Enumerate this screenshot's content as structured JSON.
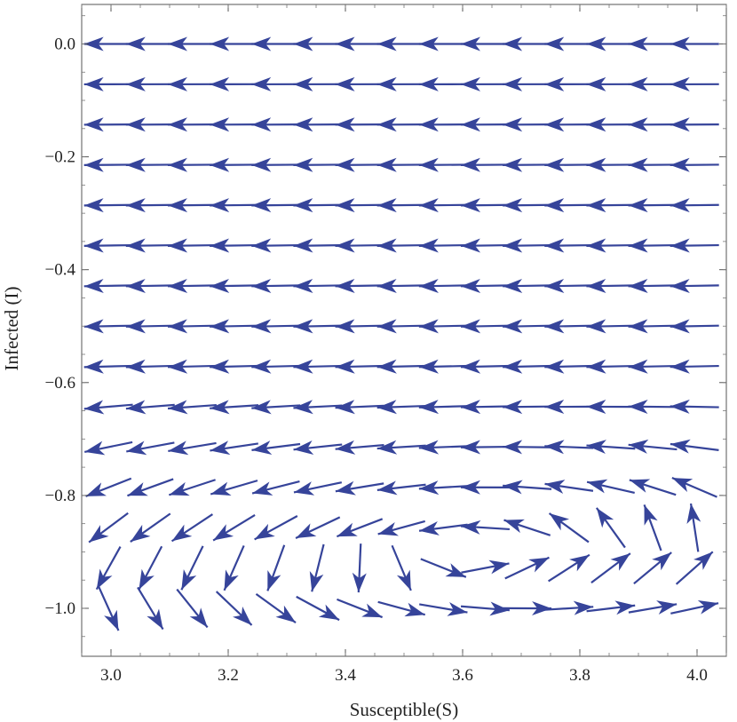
{
  "chart_data": {
    "type": "vector-field",
    "xlabel": "Susceptible(S)",
    "ylabel": "Infected (I)",
    "xlim": [
      2.95,
      4.05
    ],
    "ylim": [
      -1.085,
      0.07
    ],
    "x_ticks": [
      {
        "value": 3.0,
        "label": "3.0"
      },
      {
        "value": 3.2,
        "label": "3.2"
      },
      {
        "value": 3.4,
        "label": "3.4"
      },
      {
        "value": 3.6,
        "label": "3.6"
      },
      {
        "value": 3.8,
        "label": "3.8"
      },
      {
        "value": 4.0,
        "label": "4.0"
      }
    ],
    "y_ticks": [
      {
        "value": 0.0,
        "label": "0.0"
      },
      {
        "value": -0.2,
        "label": "−0.2"
      },
      {
        "value": -0.4,
        "label": "−0.4"
      },
      {
        "value": -0.6,
        "label": "−0.6"
      },
      {
        "value": -0.8,
        "label": "−0.8"
      },
      {
        "value": -1.0,
        "label": "−1.0"
      }
    ],
    "arrow_color": "#36449a",
    "grid": false,
    "grid_points": {
      "x_start": 2.96,
      "x_step": 0.07143,
      "x_count": 15,
      "y_start": 0.0,
      "y_step": -0.07143,
      "y_count": 15
    },
    "field_rows": [
      {
        "y": 0.0,
        "direction": "left",
        "tilt": 0.0
      },
      {
        "y": -0.071,
        "direction": "left",
        "tilt": 0.0
      },
      {
        "y": -0.143,
        "direction": "left",
        "tilt": 0.01
      },
      {
        "y": -0.214,
        "direction": "left",
        "tilt": 0.02
      },
      {
        "y": -0.286,
        "direction": "left",
        "tilt": 0.03
      },
      {
        "y": -0.357,
        "direction": "left",
        "tilt": 0.05
      },
      {
        "y": -0.429,
        "direction": "left",
        "tilt": 0.07
      },
      {
        "y": -0.5,
        "direction": "left",
        "tilt": 0.1
      },
      {
        "y": -0.571,
        "direction": "left",
        "tilt": 0.15
      },
      {
        "y": -0.643,
        "direction": "left",
        "tilt": 0.35
      },
      {
        "y": -0.714,
        "direction": "mixed",
        "tilt": 0.6
      },
      {
        "y": -0.786,
        "direction": "mixed",
        "tilt": 0.9
      },
      {
        "y": -0.857,
        "direction": "mixed",
        "tilt": 1.2
      },
      {
        "y": -0.929,
        "direction": "mixed",
        "tilt": 1.4
      },
      {
        "y": -1.0,
        "direction": "right",
        "tilt": 0.8
      }
    ]
  }
}
